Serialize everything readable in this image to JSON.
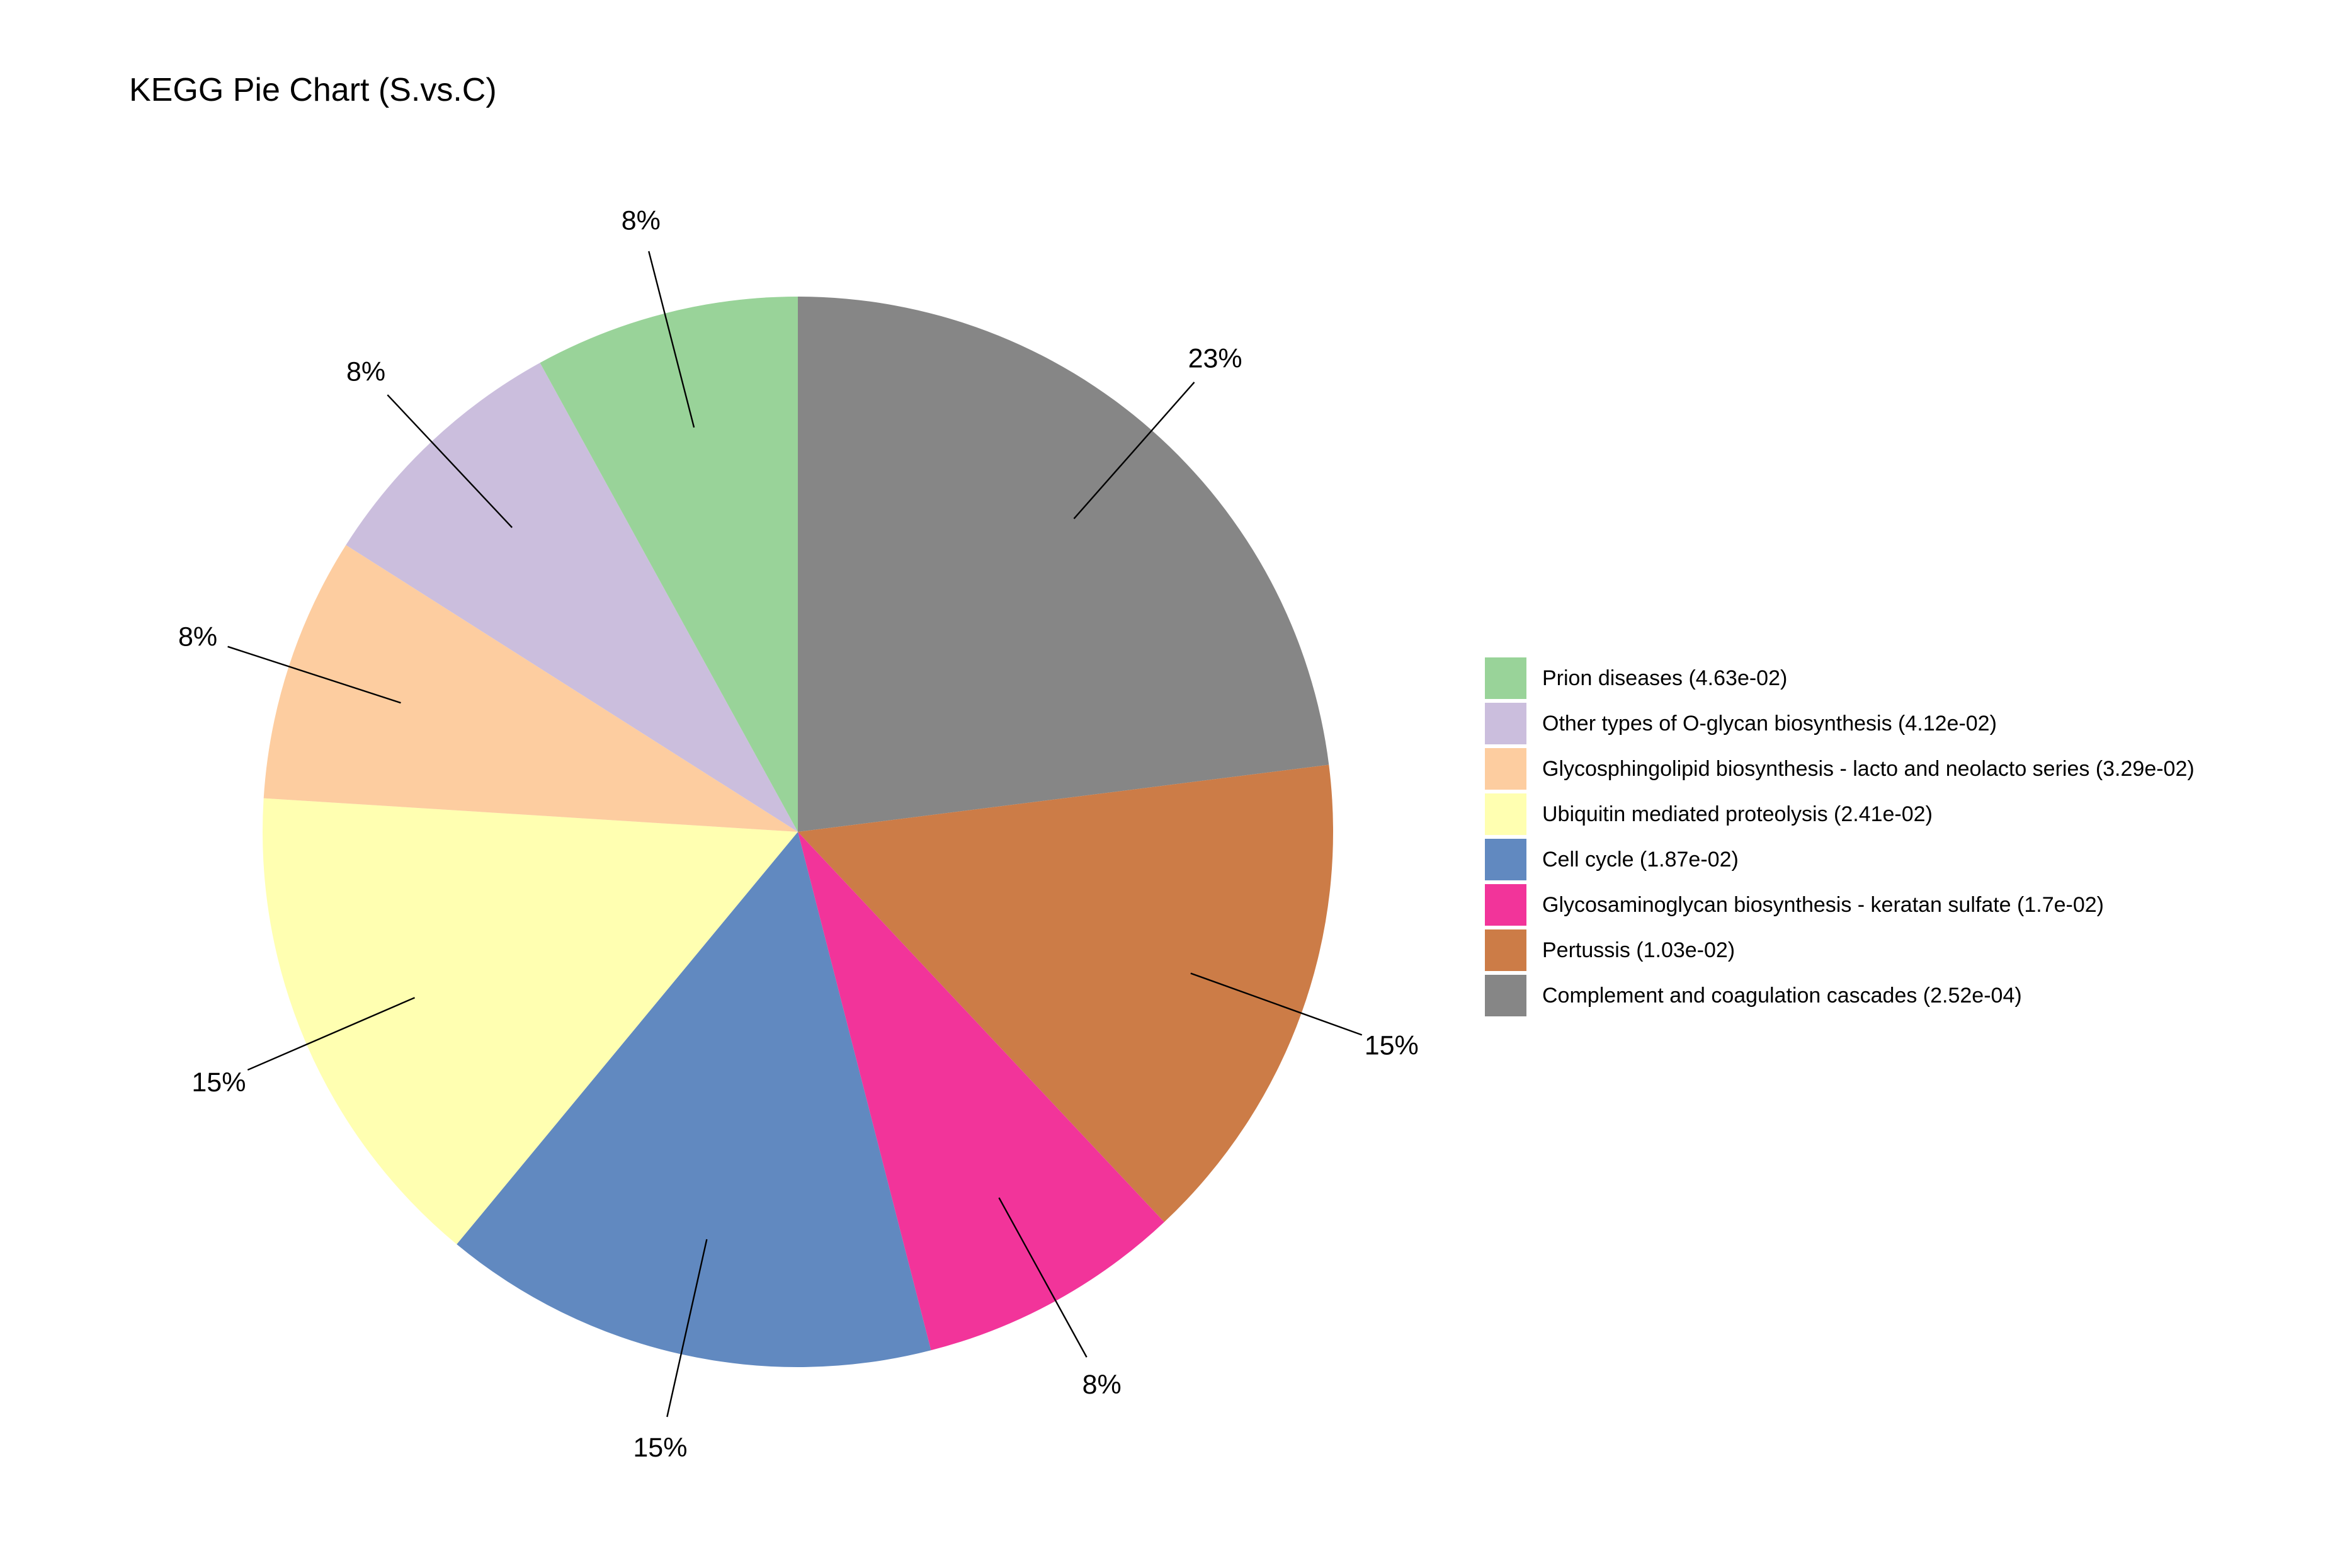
{
  "chart_data": {
    "type": "pie",
    "title": "KEGG Pie Chart (S.vs.C)",
    "slices": [
      {
        "name": "Complement and coagulation cascades (2.52e-04)",
        "value": 23,
        "label": "23%",
        "color": "#868686"
      },
      {
        "name": "Pertussis (1.03e-02)",
        "value": 15,
        "label": "15%",
        "color": "#CC7C47"
      },
      {
        "name": "Glycosaminoglycan biosynthesis - keratan sulfate (1.7e-02)",
        "value": 8,
        "label": "8%",
        "color": "#F2349A"
      },
      {
        "name": "Cell cycle (1.87e-02)",
        "value": 15,
        "label": "15%",
        "color": "#6189C0"
      },
      {
        "name": "Ubiquitin mediated proteolysis (2.41e-02)",
        "value": 15,
        "label": "15%",
        "color": "#FFFFB1"
      },
      {
        "name": "Glycosphingolipid biosynthesis - lacto and neolacto series (3.29e-02)",
        "value": 8,
        "label": "8%",
        "color": "#FDCDA0"
      },
      {
        "name": "Other types of O-glycan biosynthesis (4.12e-02)",
        "value": 8,
        "label": "8%",
        "color": "#CBBEDD"
      },
      {
        "name": "Prion diseases (4.63e-02)",
        "value": 8,
        "label": "8%",
        "color": "#99D399"
      }
    ],
    "legend_order": [
      "Prion diseases (4.63e-02)",
      "Other types of O-glycan biosynthesis (4.12e-02)",
      "Glycosphingolipid biosynthesis - lacto and neolacto series (3.29e-02)",
      "Ubiquitin mediated proteolysis (2.41e-02)",
      "Cell cycle (1.87e-02)",
      "Glycosaminoglycan biosynthesis - keratan sulfate (1.7e-02)",
      "Pertussis (1.03e-02)",
      "Complement and coagulation cascades (2.52e-04)"
    ],
    "start": "12 o'clock",
    "direction": "clockwise",
    "legend_position": "right"
  }
}
